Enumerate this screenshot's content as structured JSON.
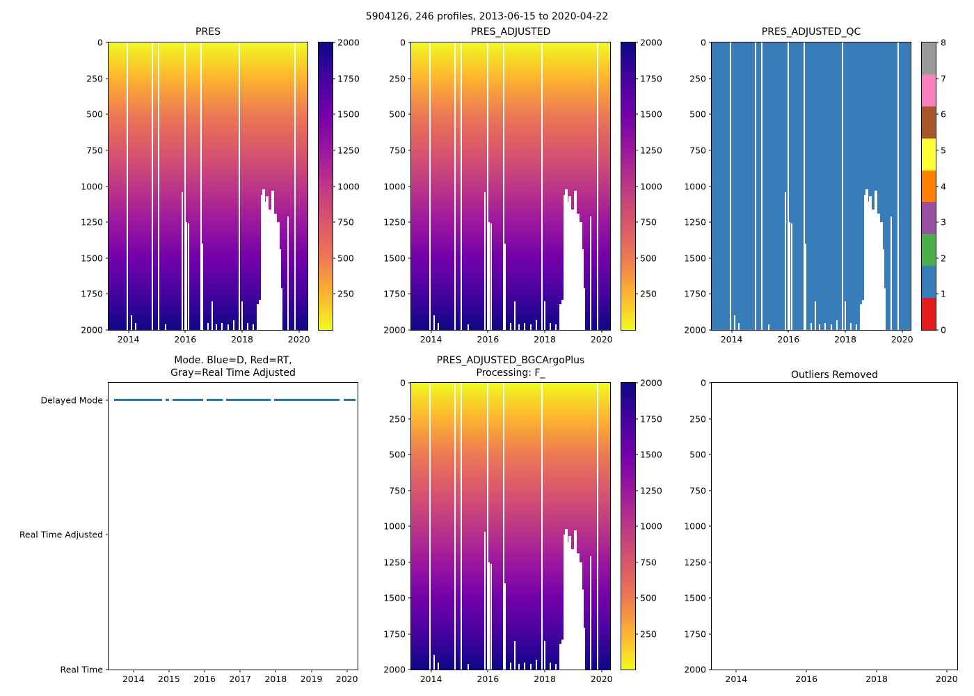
{
  "figure": {
    "title": "5904126, 246 profiles, 2013-06-15 to 2020-04-22"
  },
  "colors": {
    "plasma_top_to_bottom": [
      "#f0f921",
      "#fdb42f",
      "#ed7953",
      "#d8576b",
      "#bd3786",
      "#9c179e",
      "#7201a8",
      "#46039f",
      "#0d0887"
    ],
    "qc_fill": "#377eb8",
    "mode_line": "#1f77b4",
    "set1": [
      "#e41a1c",
      "#377eb8",
      "#4daf4a",
      "#984ea3",
      "#ff7f00",
      "#ffff33",
      "#a65628",
      "#f781bf",
      "#999999"
    ],
    "axis": "#000000"
  },
  "profile_gaps": {
    "full": [
      2013.95,
      2014.85,
      2015.05,
      2016.0,
      2016.55,
      2017.9,
      2019.85
    ],
    "partial": [
      [
        2014.1,
        1900,
        2
      ],
      [
        2014.25,
        1950,
        2
      ],
      [
        2015.3,
        1960,
        2
      ],
      [
        2015.9,
        1040,
        2
      ],
      [
        2016.05,
        1250,
        2
      ],
      [
        2016.12,
        1260,
        2
      ],
      [
        2016.6,
        1400,
        2
      ],
      [
        2016.8,
        1950,
        2
      ],
      [
        2016.95,
        1800,
        2
      ],
      [
        2017.1,
        1960,
        2
      ],
      [
        2017.3,
        1950,
        2
      ],
      [
        2017.5,
        1960,
        2
      ],
      [
        2017.7,
        1930,
        2
      ],
      [
        2018.0,
        1800,
        2
      ],
      [
        2018.2,
        1950,
        2
      ],
      [
        2018.4,
        1960,
        2
      ],
      [
        2018.55,
        1820,
        3
      ],
      [
        2018.63,
        1790,
        3
      ],
      [
        2018.72,
        1060,
        4
      ],
      [
        2018.77,
        1020,
        4
      ],
      [
        2018.82,
        1110,
        4
      ],
      [
        2018.87,
        1070,
        4
      ],
      [
        2018.92,
        1240,
        4
      ],
      [
        2018.97,
        1160,
        4
      ],
      [
        2019.02,
        1390,
        4
      ],
      [
        2019.07,
        1030,
        4
      ],
      [
        2019.12,
        1320,
        4
      ],
      [
        2019.17,
        1190,
        4
      ],
      [
        2019.22,
        1660,
        4
      ],
      [
        2019.27,
        1250,
        4
      ],
      [
        2019.32,
        1440,
        4
      ],
      [
        2019.38,
        1710,
        3
      ],
      [
        2019.62,
        1210,
        2
      ]
    ]
  },
  "chart_data": [
    {
      "id": "pres",
      "type": "heatmap",
      "title": "PRES",
      "fill": "plasma",
      "x_range": [
        2013.3,
        2020.3
      ],
      "x_ticks": [
        "2014",
        "2016",
        "2018",
        "2020"
      ],
      "y_range": [
        0,
        2000
      ],
      "y_inverted": true,
      "y_ticks": [
        "0",
        "250",
        "500",
        "750",
        "1000",
        "1250",
        "1500",
        "1750",
        "2000"
      ],
      "colorbar": {
        "type": "continuous",
        "vmin": 0,
        "vmax": 2000,
        "colormap": "plasma_r",
        "ticks": [
          "250",
          "500",
          "750",
          "1000",
          "1250",
          "1500",
          "1750",
          "2000"
        ]
      },
      "gaps": "shared"
    },
    {
      "id": "pres_adjusted",
      "type": "heatmap",
      "title": "PRES_ADJUSTED",
      "fill": "plasma",
      "x_range": [
        2013.3,
        2020.3
      ],
      "x_ticks": [
        "2014",
        "2016",
        "2018",
        "2020"
      ],
      "y_range": [
        0,
        2000
      ],
      "y_inverted": true,
      "y_ticks": [
        "0",
        "250",
        "500",
        "750",
        "1000",
        "1250",
        "1500",
        "1750",
        "2000"
      ],
      "colorbar": {
        "type": "continuous",
        "vmin": 0,
        "vmax": 2000,
        "colormap": "plasma_r",
        "ticks": [
          "250",
          "500",
          "750",
          "1000",
          "1250",
          "1500",
          "1750",
          "2000"
        ]
      },
      "gaps": "shared"
    },
    {
      "id": "qc",
      "type": "heatmap",
      "title": "PRES_ADJUSTED_QC",
      "fill": "solid-qc",
      "dominant_value": 1,
      "x_range": [
        2013.3,
        2020.3
      ],
      "x_ticks": [
        "2014",
        "2016",
        "2018",
        "2020"
      ],
      "y_range": [
        0,
        2000
      ],
      "y_inverted": true,
      "y_ticks": [
        "0",
        "250",
        "500",
        "750",
        "1000",
        "1250",
        "1500",
        "1750",
        "2000"
      ],
      "colorbar": {
        "type": "discrete",
        "vmin": 0,
        "vmax": 8,
        "colormap": "Set1",
        "labels": [
          "0",
          "1",
          "2",
          "3",
          "4",
          "5",
          "6",
          "7",
          "8"
        ],
        "colors_ref": "set1"
      },
      "gaps": "shared"
    },
    {
      "id": "mode",
      "type": "line",
      "title": "Mode. Blue=D, Red=RT, Gray=Real Time Adjusted",
      "title_lines": [
        "Mode. Blue=D, Red=RT,",
        "Gray=Real Time Adjusted"
      ],
      "x_range": [
        2013.3,
        2020.3
      ],
      "x_ticks": [
        "2014",
        "2015",
        "2016",
        "2017",
        "2018",
        "2019",
        "2020"
      ],
      "y_categories": [
        {
          "label": "Delayed Mode",
          "f": 0.06
        },
        {
          "label": "Real Time Adjusted",
          "f": 0.53
        },
        {
          "label": "Real Time",
          "f": 1.0
        }
      ],
      "line": {
        "value": "Delayed Mode",
        "f": 0.06,
        "segments": [
          [
            2013.45,
            2014.8
          ],
          [
            2014.9,
            2015.0
          ],
          [
            2015.1,
            2015.95
          ],
          [
            2016.05,
            2016.5
          ],
          [
            2016.6,
            2017.85
          ],
          [
            2017.95,
            2019.8
          ],
          [
            2019.9,
            2020.25
          ]
        ]
      }
    },
    {
      "id": "bgc",
      "type": "heatmap",
      "title": "PRES_ADJUSTED_BGCArgoPlus Processing: F_",
      "title_lines": [
        "PRES_ADJUSTED_BGCArgoPlus",
        "Processing: F_"
      ],
      "fill": "plasma",
      "x_range": [
        2013.3,
        2020.3
      ],
      "x_ticks": [
        "2014",
        "2016",
        "2018",
        "2020"
      ],
      "y_range": [
        0,
        2000
      ],
      "y_inverted": true,
      "y_ticks": [
        "0",
        "250",
        "500",
        "750",
        "1000",
        "1250",
        "1500",
        "1750",
        "2000"
      ],
      "colorbar": {
        "type": "continuous",
        "vmin": 0,
        "vmax": 2000,
        "colormap": "plasma_r",
        "ticks": [
          "250",
          "500",
          "750",
          "1000",
          "1250",
          "1500",
          "1750",
          "2000"
        ]
      },
      "gaps": "shared"
    },
    {
      "id": "outliers",
      "type": "scatter",
      "title": "Outliers Removed",
      "points": [],
      "x_range": [
        2013.3,
        2020.3
      ],
      "x_ticks": [
        "2014",
        "2016",
        "2018",
        "2020"
      ],
      "y_range": [
        0,
        2000
      ],
      "y_inverted": true,
      "y_ticks": [
        "0",
        "250",
        "500",
        "750",
        "1000",
        "1250",
        "1500",
        "1750",
        "2000"
      ]
    }
  ]
}
